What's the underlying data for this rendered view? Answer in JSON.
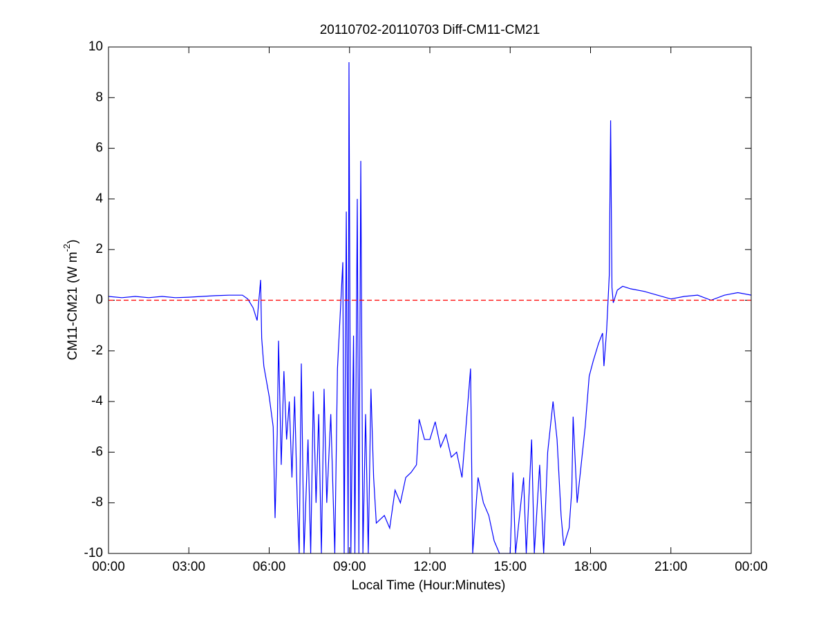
{
  "chart_data": {
    "type": "line",
    "title": "20110702-20110703 Diff-CM11-CM21",
    "xlabel": "Local Time (Hour:Minutes)",
    "ylabel": {
      "text": "CM11-CM21 (W m",
      "superscript": "-2",
      "suffix": ")"
    },
    "x": [
      0,
      0.5,
      1,
      1.5,
      2,
      2.5,
      3,
      3.5,
      4,
      4.5,
      5,
      5.2,
      5.4,
      5.55,
      5.68,
      5.72,
      5.8,
      6.0,
      6.15,
      6.22,
      6.3,
      6.35,
      6.45,
      6.55,
      6.65,
      6.75,
      6.85,
      6.95,
      7.05,
      7.12,
      7.2,
      7.3,
      7.45,
      7.55,
      7.65,
      7.75,
      7.85,
      7.95,
      8.05,
      8.15,
      8.3,
      8.45,
      8.55,
      8.75,
      8.8,
      8.88,
      8.95,
      8.98,
      9.05,
      9.15,
      9.2,
      9.29,
      9.35,
      9.42,
      9.5,
      9.6,
      9.7,
      9.8,
      9.9,
      10.0,
      10.3,
      10.5,
      10.7,
      10.9,
      11.1,
      11.3,
      11.5,
      11.6,
      11.8,
      12.0,
      12.2,
      12.4,
      12.6,
      12.8,
      13.0,
      13.2,
      13.52,
      13.6,
      13.8,
      14.0,
      14.2,
      14.4,
      14.6,
      15.0,
      15.1,
      15.2,
      15.5,
      15.6,
      15.8,
      15.9,
      16.1,
      16.25,
      16.4,
      16.6,
      16.75,
      16.9,
      17.0,
      17.2,
      17.3,
      17.35,
      17.5,
      17.65,
      17.8,
      17.95,
      18.1,
      18.3,
      18.45,
      18.5,
      18.6,
      18.7,
      18.75,
      18.8,
      18.85,
      19.0,
      19.2,
      19.5,
      20.0,
      20.5,
      21.0,
      21.5,
      22.0,
      22.5,
      23.0,
      23.5,
      24.0
    ],
    "series": [
      {
        "color": "#0000ff",
        "values": [
          0.15,
          0.1,
          0.15,
          0.1,
          0.15,
          0.1,
          0.12,
          0.15,
          0.18,
          0.2,
          0.2,
          0.05,
          -0.3,
          -0.8,
          0.8,
          -1.5,
          -2.6,
          -3.8,
          -5,
          -8.6,
          -5.3,
          -1.6,
          -6.5,
          -2.8,
          -5.5,
          -4,
          -7,
          -3.8,
          -8,
          -10,
          -2.5,
          -10,
          -5.5,
          -10,
          -3.6,
          -8,
          -4.5,
          -10,
          -3.5,
          -8,
          -4.5,
          -10,
          -2.7,
          1.5,
          -10,
          3.5,
          -10,
          9.4,
          -10,
          -1.4,
          -10,
          4,
          -10,
          5.5,
          -10,
          -4.5,
          -10,
          -3.5,
          -7,
          -8.8,
          -8.5,
          -9,
          -7.5,
          -8,
          -7,
          -6.8,
          -6.5,
          -4.7,
          -5.5,
          -5.5,
          -4.8,
          -5.8,
          -5.3,
          -6.2,
          -6,
          -7,
          -2.7,
          -10,
          -7,
          -8,
          -8.5,
          -9.5,
          -10,
          -10,
          -6.8,
          -10,
          -7,
          -10,
          -5.5,
          -10,
          -6.5,
          -10,
          -6,
          -4,
          -5.5,
          -8.5,
          -9.7,
          -9,
          -7.5,
          -4.6,
          -8,
          -6.5,
          -5,
          -3,
          -2.4,
          -1.7,
          -1.3,
          -2.6,
          -1.2,
          1,
          7.1,
          0.5,
          -0.1,
          0.4,
          0.55,
          0.45,
          0.35,
          0.2,
          0.05,
          0.15,
          0.2,
          0.0,
          0.2,
          0.3,
          0.2
        ]
      }
    ],
    "reference_line": {
      "value": 0,
      "color": "#ff0000"
    },
    "xlim": [
      0,
      24
    ],
    "xticks": [
      {
        "value": 0,
        "label": "00:00"
      },
      {
        "value": 3,
        "label": "03:00"
      },
      {
        "value": 6,
        "label": "06:00"
      },
      {
        "value": 9,
        "label": "09:00"
      },
      {
        "value": 12,
        "label": "12:00"
      },
      {
        "value": 15,
        "label": "15:00"
      },
      {
        "value": 18,
        "label": "18:00"
      },
      {
        "value": 21,
        "label": "21:00"
      },
      {
        "value": 24,
        "label": "00:00"
      }
    ],
    "ylim": [
      -10,
      10
    ],
    "yticks": [
      -10,
      -8,
      -6,
      -4,
      -2,
      0,
      2,
      4,
      6,
      8,
      10
    ],
    "grid": false
  }
}
